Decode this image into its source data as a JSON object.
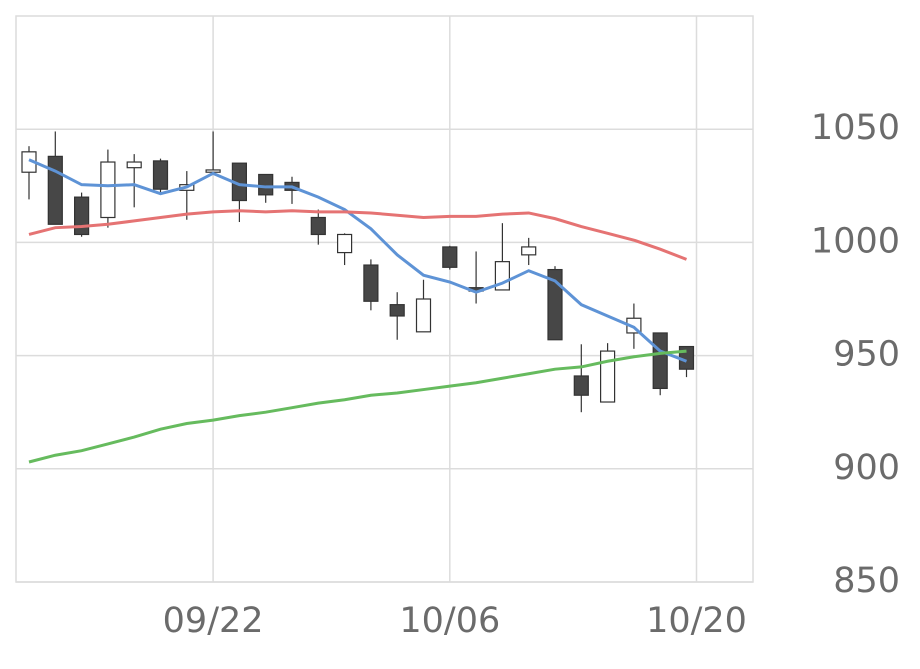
{
  "chart_data": {
    "type": "candlestick",
    "categories": [
      null,
      null,
      null,
      null,
      null,
      null,
      null,
      "09/22",
      null,
      null,
      null,
      null,
      null,
      null,
      null,
      null,
      "10/06",
      null,
      null,
      null,
      null,
      null,
      null,
      null,
      null,
      "10/20"
    ],
    "open": [
      1031,
      1038,
      1020,
      1011,
      1033,
      1036,
      1023,
      1031,
      1035,
      1030,
      1026.5,
      1011,
      995.5,
      990,
      972.5,
      960.5,
      998,
      980,
      979,
      994.5,
      988,
      941,
      929.5,
      960,
      960,
      954
    ],
    "high": [
      1042.5,
      1049,
      1022,
      1041,
      1039,
      1037,
      1031.5,
      1049,
      1035,
      1030,
      1029,
      1014.5,
      1004,
      992.5,
      978,
      983.5,
      998.5,
      996,
      1008.5,
      1002,
      989.5,
      955,
      955.5,
      973,
      960,
      954
    ],
    "low": [
      1019,
      1008,
      1002.5,
      1006.5,
      1015.5,
      1022,
      1010,
      1030,
      1009,
      1017.5,
      1017,
      999,
      990,
      970,
      957,
      960.5,
      988,
      973,
      979,
      990,
      957,
      925,
      929.5,
      953,
      932.5,
      940.5
    ],
    "close": [
      1040,
      1008,
      1003.5,
      1035.5,
      1035.5,
      1023.5,
      1025.5,
      1032,
      1018.5,
      1021,
      1023,
      1003.5,
      1003.5,
      974,
      967.5,
      975,
      989,
      978.5,
      991.5,
      998,
      957,
      932.5,
      952,
      966.5,
      935.5,
      944
    ],
    "up_color": "#ffffff",
    "down_color": "#474747",
    "lines": [
      {
        "color": "#5e93d6",
        "values": [
          1036.5,
          1031.5,
          1025.5,
          1025,
          1025.5,
          1021.5,
          1024.5,
          1030.5,
          1025.5,
          1024.5,
          1024.5,
          1020,
          1014.5,
          1006,
          994.5,
          985.5,
          982.5,
          978,
          982,
          987.5,
          983,
          972.5,
          967.5,
          962.5,
          952,
          947.5
        ]
      },
      {
        "color": "#e57373",
        "values": [
          1003.5,
          1006.5,
          1007,
          1008,
          1009.5,
          1011,
          1012.5,
          1013.5,
          1014,
          1013.5,
          1014,
          1013.5,
          1013.5,
          1013,
          1012,
          1011,
          1011.5,
          1011.5,
          1012.5,
          1013,
          1010.5,
          1007,
          1004,
          1001,
          997,
          992.5
        ]
      },
      {
        "color": "#66bb5e",
        "values": [
          903,
          906,
          908,
          911,
          914,
          917.5,
          920,
          921.5,
          923.5,
          925,
          927,
          929,
          930.5,
          932.5,
          933.5,
          935,
          936.5,
          938,
          940,
          942,
          944,
          945,
          947.5,
          949.5,
          951,
          952
        ]
      }
    ],
    "ylim": [
      850,
      1100
    ],
    "yticks": [
      850,
      900,
      950,
      1000,
      1050
    ],
    "grid": true
  }
}
